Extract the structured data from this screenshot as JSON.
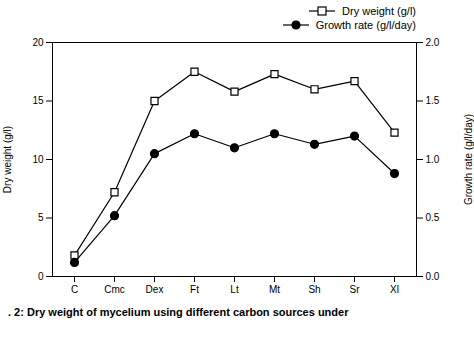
{
  "chart_data": {
    "type": "line",
    "categories": [
      "C",
      "Cmc",
      "Dex",
      "Ft",
      "Lt",
      "Mt",
      "Sh",
      "Sr",
      "Xl"
    ],
    "series": [
      {
        "name": "Dry weight (g/l)",
        "color": "#000000",
        "marker": "square_open",
        "line_style": "solid",
        "values": [
          1.8,
          7.2,
          15.0,
          17.5,
          15.8,
          17.3,
          16.0,
          16.7,
          12.3
        ]
      },
      {
        "name": "Growth rate (g/l/day)",
        "color": "#000000",
        "marker": "circle",
        "line_style": "solid",
        "axis": "y2",
        "values": [
          0.12,
          0.52,
          1.05,
          1.22,
          1.1,
          1.22,
          1.13,
          1.2,
          0.88
        ]
      }
    ],
    "ylabel": "Dry weight (g/l)",
    "y2label": "Growth rate (g/l/day)",
    "ylim": [
      0,
      20
    ],
    "yticks": [
      0,
      5,
      10,
      15,
      20
    ],
    "y2lim": [
      0.0,
      2.0
    ],
    "y2ticks": [
      {
        "value": 0.0,
        "label": "0.0"
      },
      {
        "value": 0.5,
        "label": "0.5"
      },
      {
        "value": 1.0,
        "label": "1.0"
      },
      {
        "value": 1.5,
        "label": "1.5"
      },
      {
        "value": 2.0,
        "label": "2.0"
      }
    ],
    "legend": "upper right",
    "grid": false,
    "caption": ". 2: Dry weight of mycelium using different carbon sources under"
  }
}
